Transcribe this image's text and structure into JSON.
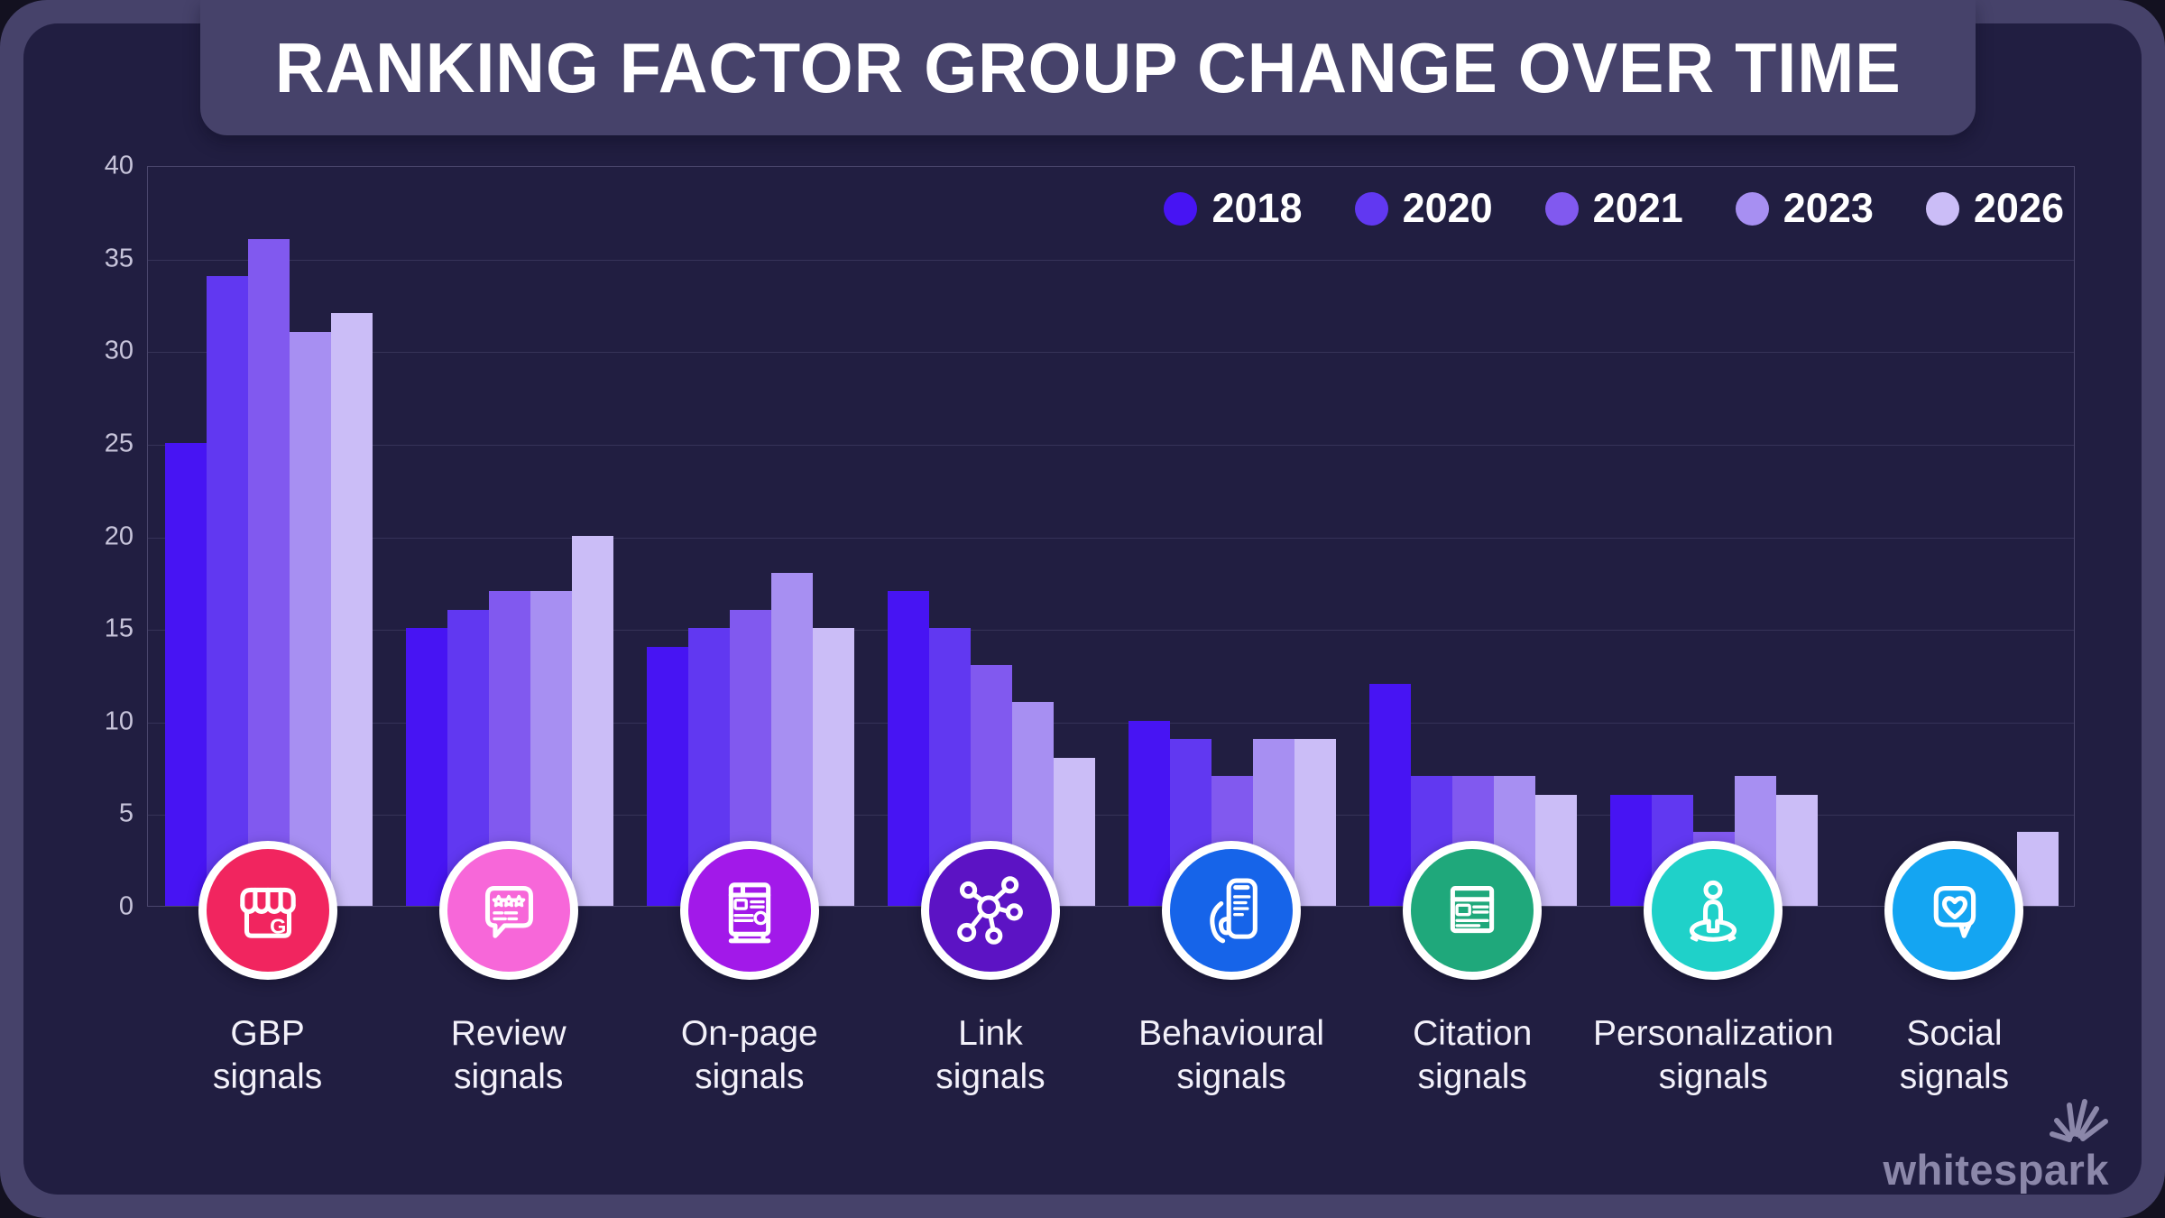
{
  "title": "RANKING FACTOR GROUP CHANGE OVER TIME",
  "watermark": "whitespark",
  "colors": {
    "frame": "#46426a",
    "panel_background": "#211e41",
    "grid": "rgba(170,164,210,0.16)",
    "tick_text": "#c7c4da",
    "label_text": "#f3f1fa",
    "title_text": "#ffffff",
    "watermark_text": "#8b87a9"
  },
  "legend": {
    "position": "top-right",
    "items": [
      {
        "label": "2018",
        "color": "#4714f3"
      },
      {
        "label": "2020",
        "color": "#6138f1"
      },
      {
        "label": "2021",
        "color": "#8159ef"
      },
      {
        "label": "2023",
        "color": "#a78ff2"
      },
      {
        "label": "2026",
        "color": "#cbbdf7"
      }
    ]
  },
  "y_axis": {
    "ticks": [
      0,
      5,
      10,
      15,
      20,
      25,
      30,
      35,
      40
    ],
    "min": 0,
    "max": 40,
    "grid": true
  },
  "chart_data": {
    "type": "bar",
    "title": "RANKING FACTOR GROUP CHANGE OVER TIME",
    "xlabel": "",
    "ylabel": "",
    "ylim": [
      0,
      40
    ],
    "legend_position": "top-right",
    "categories": [
      "GBP signals",
      "Review signals",
      "On-page signals",
      "Link signals",
      "Behavioural signals",
      "Citation signals",
      "Personalization signals",
      "Social signals"
    ],
    "series": [
      {
        "name": "2018",
        "color": "#4714f3",
        "values": [
          25,
          15,
          14,
          17,
          10,
          12,
          6,
          null
        ]
      },
      {
        "name": "2020",
        "color": "#6138f1",
        "values": [
          34,
          16,
          15,
          15,
          9,
          7,
          6,
          null
        ]
      },
      {
        "name": "2021",
        "color": "#8159ef",
        "values": [
          36,
          17,
          16,
          13,
          7,
          7,
          4,
          null
        ]
      },
      {
        "name": "2023",
        "color": "#a78ff2",
        "values": [
          31,
          17,
          18,
          11,
          9,
          7,
          7,
          null
        ]
      },
      {
        "name": "2026",
        "color": "#cbbdf7",
        "values": [
          32,
          20,
          15,
          8,
          9,
          6,
          6,
          4
        ]
      }
    ],
    "note_nulls": "bars hidden behind category icon in source image"
  },
  "category_axis": [
    {
      "label": "GBP signals",
      "icon": "storefront-g-icon",
      "icon_color": "#f1255f"
    },
    {
      "label": "Review signals",
      "icon": "review-stars-icon",
      "icon_color": "#f767d9"
    },
    {
      "label": "On-page signals",
      "icon": "onpage-document-icon",
      "icon_color": "#a219e9"
    },
    {
      "label": "Link signals",
      "icon": "link-network-icon",
      "icon_color": "#5c13c4"
    },
    {
      "label": "Behavioural signals",
      "icon": "hand-phone-icon",
      "icon_color": "#1664e9"
    },
    {
      "label": "Citation signals",
      "icon": "citation-page-icon",
      "icon_color": "#1fa87b"
    },
    {
      "label": "Personalization signals",
      "icon": "person-icon",
      "icon_color": "#1fd1c9"
    },
    {
      "label": "Social signals",
      "icon": "heart-bubble-icon",
      "icon_color": "#14a5f2"
    }
  ]
}
